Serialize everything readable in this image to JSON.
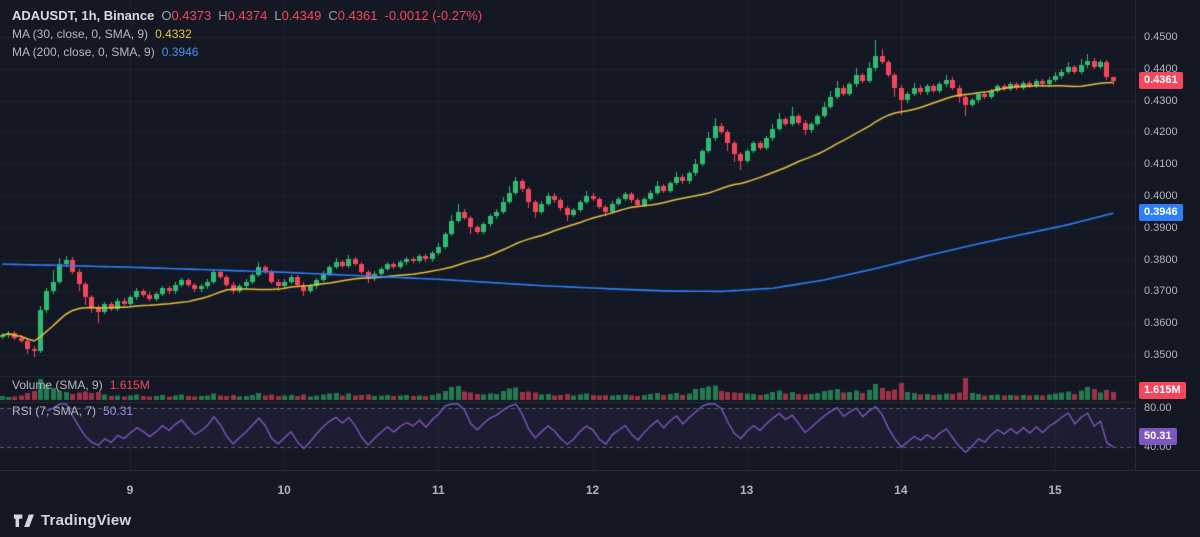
{
  "branding": {
    "logo_text": "TradingView"
  },
  "chart_data": {
    "type": "candlestick",
    "symbol_title": "ADAUSDT, 1h, Binance",
    "ohlc_legend": {
      "o_label": "O",
      "o": "0.4373",
      "h_label": "H",
      "h": "0.4374",
      "l_label": "L",
      "l": "0.4349",
      "c_label": "C",
      "c": "0.4361",
      "change": "-0.0012 (-0.27%)"
    },
    "indicators": [
      {
        "label": "MA (30, close, 0, SMA, 9)",
        "value": "0.4332",
        "color": "#e8c33d",
        "period": 30
      },
      {
        "label": "MA (200, close, 0, SMA, 9)",
        "value": "0.3946",
        "color": "#2d7ff9",
        "period": 200
      }
    ],
    "volume_legend": {
      "label": "Volume (SMA, 9)",
      "value": "1.615M"
    },
    "rsi_legend": {
      "label": "RSI (7, SMA, 7)",
      "value": "50.31",
      "period": 7
    },
    "price_axis_ticks": [
      "0.4500",
      "0.4400",
      "0.4300",
      "0.4200",
      "0.4100",
      "0.4000",
      "0.3900",
      "0.3800",
      "0.3700",
      "0.3600",
      "0.3500"
    ],
    "ylim": [
      0.3453,
      0.4616
    ],
    "rsi_axis_ticks": [
      {
        "label": "80.00",
        "value": 80
      },
      {
        "label": "40.00",
        "value": 40
      }
    ],
    "rsi_dashed_levels": [
      80,
      40
    ],
    "time_ticks": [
      {
        "label": "9",
        "i": 20
      },
      {
        "label": "10",
        "i": 44
      },
      {
        "label": "11",
        "i": 68
      },
      {
        "label": "12",
        "i": 92
      },
      {
        "label": "13",
        "i": 116
      },
      {
        "label": "14",
        "i": 140
      },
      {
        "label": "15",
        "i": 164
      }
    ],
    "badges": [
      {
        "name": "last-price-badge",
        "text": "0.4361",
        "bg": "#f6465d",
        "pane": "price",
        "value": 0.4361
      },
      {
        "name": "ma200-value-badge",
        "text": "0.3946",
        "bg": "#2d7ff9",
        "pane": "price",
        "value": 0.3946
      },
      {
        "name": "volume-value-badge",
        "text": "1.615M",
        "bg": "#f6465d",
        "pane": "volume",
        "value": 0
      },
      {
        "name": "rsi-value-badge",
        "text": "50.31",
        "bg": "#7e57c2",
        "pane": "rsi",
        "value": 50.31
      }
    ],
    "colors": {
      "background": "#141824",
      "up": "#2ebd70",
      "down": "#f6465d",
      "ma30": "#e8c33d",
      "ma200": "#2d7ff9",
      "rsi": "#7e57c2",
      "axis_text": "#b2b5be",
      "grid": "rgba(140,150,175,0.08)"
    },
    "ma200_waypoints": [
      [
        0,
        0.3786
      ],
      [
        20,
        0.3776
      ],
      [
        44,
        0.376
      ],
      [
        68,
        0.3738
      ],
      [
        84,
        0.3718
      ],
      [
        96,
        0.3707
      ],
      [
        104,
        0.3701
      ],
      [
        112,
        0.37
      ],
      [
        120,
        0.371
      ],
      [
        128,
        0.3736
      ],
      [
        136,
        0.3772
      ],
      [
        144,
        0.3812
      ],
      [
        152,
        0.385
      ],
      [
        160,
        0.3884
      ],
      [
        166,
        0.391
      ],
      [
        173,
        0.3946
      ]
    ],
    "candles": [
      [
        0.3558,
        0.3569,
        0.3551,
        0.3562
      ],
      [
        0.3562,
        0.3577,
        0.3555,
        0.357
      ],
      [
        0.357,
        0.3577,
        0.3548,
        0.3555
      ],
      [
        0.3555,
        0.3562,
        0.3538,
        0.3545
      ],
      [
        0.3545,
        0.3552,
        0.3502,
        0.352
      ],
      [
        0.352,
        0.3527,
        0.3495,
        0.3512
      ],
      [
        0.3512,
        0.3655,
        0.3505,
        0.364
      ],
      [
        0.364,
        0.3712,
        0.3633,
        0.37
      ],
      [
        0.37,
        0.3768,
        0.3693,
        0.373
      ],
      [
        0.373,
        0.3805,
        0.3723,
        0.3785
      ],
      [
        0.3785,
        0.3812,
        0.3778,
        0.38
      ],
      [
        0.38,
        0.3807,
        0.3755,
        0.3762
      ],
      [
        0.3762,
        0.3769,
        0.3701,
        0.3722
      ],
      [
        0.3722,
        0.3729,
        0.3656,
        0.3681
      ],
      [
        0.3681,
        0.3688,
        0.3631,
        0.3651
      ],
      [
        0.3651,
        0.3658,
        0.3601,
        0.3636
      ],
      [
        0.3636,
        0.3668,
        0.3629,
        0.3661
      ],
      [
        0.3661,
        0.3668,
        0.3638,
        0.3645
      ],
      [
        0.3645,
        0.3678,
        0.3638,
        0.3671
      ],
      [
        0.3671,
        0.3678,
        0.3653,
        0.366
      ],
      [
        0.366,
        0.3688,
        0.3653,
        0.3681
      ],
      [
        0.3681,
        0.3711,
        0.3674,
        0.3701
      ],
      [
        0.3701,
        0.3708,
        0.3683,
        0.369
      ],
      [
        0.369,
        0.3697,
        0.3669,
        0.3676
      ],
      [
        0.3676,
        0.3698,
        0.3669,
        0.3691
      ],
      [
        0.3691,
        0.3718,
        0.3684,
        0.3711
      ],
      [
        0.3711,
        0.3718,
        0.3693,
        0.37
      ],
      [
        0.37,
        0.3728,
        0.3693,
        0.3721
      ],
      [
        0.3721,
        0.3743,
        0.3714,
        0.3736
      ],
      [
        0.3736,
        0.3743,
        0.3713,
        0.372
      ],
      [
        0.372,
        0.3727,
        0.3699,
        0.3706
      ],
      [
        0.3706,
        0.3723,
        0.3699,
        0.3716
      ],
      [
        0.3716,
        0.3738,
        0.3709,
        0.3731
      ],
      [
        0.3731,
        0.3771,
        0.3724,
        0.3761
      ],
      [
        0.3761,
        0.3768,
        0.3739,
        0.3746
      ],
      [
        0.3746,
        0.3753,
        0.3714,
        0.3721
      ],
      [
        0.3721,
        0.3728,
        0.3691,
        0.3701
      ],
      [
        0.3701,
        0.3723,
        0.3694,
        0.3716
      ],
      [
        0.3716,
        0.3738,
        0.3709,
        0.3731
      ],
      [
        0.3731,
        0.3758,
        0.3724,
        0.3751
      ],
      [
        0.3751,
        0.3791,
        0.3744,
        0.3776
      ],
      [
        0.3776,
        0.3783,
        0.3754,
        0.3761
      ],
      [
        0.3761,
        0.3768,
        0.3724,
        0.3731
      ],
      [
        0.3731,
        0.3738,
        0.3701,
        0.3716
      ],
      [
        0.3716,
        0.3738,
        0.3709,
        0.3731
      ],
      [
        0.3731,
        0.3753,
        0.3724,
        0.3746
      ],
      [
        0.3746,
        0.3753,
        0.3714,
        0.3721
      ],
      [
        0.3721,
        0.3728,
        0.3686,
        0.3701
      ],
      [
        0.3701,
        0.3723,
        0.3694,
        0.3716
      ],
      [
        0.3716,
        0.3743,
        0.3709,
        0.3736
      ],
      [
        0.3736,
        0.3763,
        0.3729,
        0.3756
      ],
      [
        0.3756,
        0.3783,
        0.3749,
        0.3776
      ],
      [
        0.3776,
        0.3806,
        0.3769,
        0.3791
      ],
      [
        0.3791,
        0.3798,
        0.3774,
        0.3781
      ],
      [
        0.3781,
        0.3816,
        0.3774,
        0.3801
      ],
      [
        0.3801,
        0.3808,
        0.3779,
        0.3786
      ],
      [
        0.3786,
        0.3793,
        0.3754,
        0.3761
      ],
      [
        0.3761,
        0.3768,
        0.3726,
        0.3741
      ],
      [
        0.3741,
        0.3763,
        0.3734,
        0.3756
      ],
      [
        0.3756,
        0.3778,
        0.3749,
        0.3771
      ],
      [
        0.3771,
        0.3793,
        0.3764,
        0.3786
      ],
      [
        0.3786,
        0.3793,
        0.3769,
        0.3776
      ],
      [
        0.3776,
        0.3798,
        0.3769,
        0.3791
      ],
      [
        0.3791,
        0.3808,
        0.3784,
        0.3801
      ],
      [
        0.3801,
        0.3808,
        0.3789,
        0.3796
      ],
      [
        0.3796,
        0.3818,
        0.3789,
        0.3811
      ],
      [
        0.3811,
        0.3818,
        0.3794,
        0.3801
      ],
      [
        0.3801,
        0.3828,
        0.3794,
        0.3821
      ],
      [
        0.3821,
        0.3851,
        0.3814,
        0.3841
      ],
      [
        0.3841,
        0.3888,
        0.3834,
        0.3881
      ],
      [
        0.3881,
        0.3941,
        0.3874,
        0.3921
      ],
      [
        0.3921,
        0.3976,
        0.3914,
        0.3951
      ],
      [
        0.3951,
        0.3958,
        0.3924,
        0.3931
      ],
      [
        0.3931,
        0.3938,
        0.3881,
        0.3901
      ],
      [
        0.3901,
        0.3908,
        0.3879,
        0.3886
      ],
      [
        0.3886,
        0.3918,
        0.3879,
        0.3911
      ],
      [
        0.3911,
        0.3943,
        0.3904,
        0.3936
      ],
      [
        0.3936,
        0.3958,
        0.3929,
        0.3951
      ],
      [
        0.3951,
        0.3996,
        0.3944,
        0.3981
      ],
      [
        0.3981,
        0.4031,
        0.3974,
        0.4011
      ],
      [
        0.4011,
        0.4061,
        0.4004,
        0.4046
      ],
      [
        0.4046,
        0.4053,
        0.4014,
        0.4021
      ],
      [
        0.4021,
        0.4028,
        0.3961,
        0.3981
      ],
      [
        0.3981,
        0.3988,
        0.3931,
        0.3951
      ],
      [
        0.3951,
        0.3983,
        0.3944,
        0.3976
      ],
      [
        0.3976,
        0.4008,
        0.3969,
        0.4001
      ],
      [
        0.4001,
        0.4008,
        0.3979,
        0.3986
      ],
      [
        0.3986,
        0.3993,
        0.3954,
        0.3961
      ],
      [
        0.3961,
        0.3968,
        0.3921,
        0.3941
      ],
      [
        0.3941,
        0.3963,
        0.3934,
        0.3956
      ],
      [
        0.3956,
        0.3988,
        0.3949,
        0.3981
      ],
      [
        0.3981,
        0.4016,
        0.3974,
        0.4001
      ],
      [
        0.4001,
        0.4008,
        0.3984,
        0.3991
      ],
      [
        0.3991,
        0.3998,
        0.3959,
        0.3966
      ],
      [
        0.3966,
        0.3973,
        0.3936,
        0.3951
      ],
      [
        0.3951,
        0.3983,
        0.3944,
        0.3976
      ],
      [
        0.3976,
        0.3998,
        0.3969,
        0.3991
      ],
      [
        0.3991,
        0.4013,
        0.3984,
        0.4006
      ],
      [
        0.4006,
        0.4013,
        0.3979,
        0.3986
      ],
      [
        0.3986,
        0.3993,
        0.3964,
        0.3971
      ],
      [
        0.3971,
        0.3998,
        0.3964,
        0.3991
      ],
      [
        0.3991,
        0.4018,
        0.3984,
        0.4011
      ],
      [
        0.4011,
        0.4046,
        0.4004,
        0.4031
      ],
      [
        0.4031,
        0.4038,
        0.4009,
        0.4016
      ],
      [
        0.4016,
        0.4048,
        0.4009,
        0.4041
      ],
      [
        0.4041,
        0.4076,
        0.4034,
        0.4061
      ],
      [
        0.4061,
        0.4068,
        0.4039,
        0.4046
      ],
      [
        0.4046,
        0.4078,
        0.4039,
        0.4071
      ],
      [
        0.4071,
        0.4116,
        0.4064,
        0.4101
      ],
      [
        0.4101,
        0.4148,
        0.4094,
        0.4141
      ],
      [
        0.4141,
        0.4201,
        0.4134,
        0.4181
      ],
      [
        0.4181,
        0.4246,
        0.4174,
        0.4221
      ],
      [
        0.4221,
        0.4228,
        0.4194,
        0.4201
      ],
      [
        0.4201,
        0.4208,
        0.4141,
        0.4166
      ],
      [
        0.4166,
        0.4173,
        0.4106,
        0.4131
      ],
      [
        0.4131,
        0.4138,
        0.4081,
        0.4111
      ],
      [
        0.4111,
        0.4148,
        0.4104,
        0.4141
      ],
      [
        0.4141,
        0.4173,
        0.4134,
        0.4166
      ],
      [
        0.4166,
        0.4173,
        0.4144,
        0.4151
      ],
      [
        0.4151,
        0.4188,
        0.4144,
        0.4181
      ],
      [
        0.4181,
        0.4226,
        0.4174,
        0.4211
      ],
      [
        0.4211,
        0.4261,
        0.4204,
        0.4241
      ],
      [
        0.4241,
        0.4248,
        0.4219,
        0.4226
      ],
      [
        0.4226,
        0.4281,
        0.4219,
        0.4251
      ],
      [
        0.4251,
        0.4258,
        0.4224,
        0.4231
      ],
      [
        0.4231,
        0.4238,
        0.4191,
        0.4206
      ],
      [
        0.4206,
        0.4233,
        0.4199,
        0.4226
      ],
      [
        0.4226,
        0.4258,
        0.4219,
        0.4251
      ],
      [
        0.4251,
        0.4296,
        0.4244,
        0.4281
      ],
      [
        0.4281,
        0.4331,
        0.4274,
        0.4311
      ],
      [
        0.4311,
        0.4361,
        0.4304,
        0.4341
      ],
      [
        0.4341,
        0.4348,
        0.4314,
        0.4321
      ],
      [
        0.4321,
        0.4358,
        0.4314,
        0.4351
      ],
      [
        0.4351,
        0.4401,
        0.4344,
        0.4381
      ],
      [
        0.4381,
        0.4388,
        0.4354,
        0.4361
      ],
      [
        0.4361,
        0.4421,
        0.4354,
        0.4401
      ],
      [
        0.4401,
        0.4491,
        0.4394,
        0.4441
      ],
      [
        0.4441,
        0.4461,
        0.4414,
        0.4421
      ],
      [
        0.4421,
        0.4428,
        0.4374,
        0.4381
      ],
      [
        0.4381,
        0.4388,
        0.4311,
        0.4341
      ],
      [
        0.4341,
        0.4348,
        0.4256,
        0.4301
      ],
      [
        0.4301,
        0.4328,
        0.4294,
        0.4321
      ],
      [
        0.4321,
        0.4356,
        0.4314,
        0.4341
      ],
      [
        0.4341,
        0.4348,
        0.4319,
        0.4326
      ],
      [
        0.4326,
        0.4353,
        0.4319,
        0.4346
      ],
      [
        0.4346,
        0.4353,
        0.4324,
        0.4331
      ],
      [
        0.4331,
        0.4358,
        0.4324,
        0.4351
      ],
      [
        0.4351,
        0.4381,
        0.4344,
        0.4366
      ],
      [
        0.4366,
        0.4373,
        0.4334,
        0.4341
      ],
      [
        0.4341,
        0.4348,
        0.4291,
        0.4311
      ],
      [
        0.4311,
        0.4318,
        0.4251,
        0.4286
      ],
      [
        0.4286,
        0.4308,
        0.4279,
        0.4301
      ],
      [
        0.4301,
        0.4328,
        0.4294,
        0.4321
      ],
      [
        0.4321,
        0.4328,
        0.4304,
        0.4311
      ],
      [
        0.4311,
        0.4338,
        0.4304,
        0.4331
      ],
      [
        0.4331,
        0.4353,
        0.4324,
        0.4346
      ],
      [
        0.4346,
        0.4353,
        0.4329,
        0.4336
      ],
      [
        0.4336,
        0.4358,
        0.4329,
        0.4351
      ],
      [
        0.4351,
        0.4358,
        0.4334,
        0.4341
      ],
      [
        0.4341,
        0.4363,
        0.4334,
        0.4356
      ],
      [
        0.4356,
        0.4363,
        0.4339,
        0.4346
      ],
      [
        0.4346,
        0.4368,
        0.4339,
        0.4361
      ],
      [
        0.4361,
        0.4368,
        0.4344,
        0.4351
      ],
      [
        0.4351,
        0.4373,
        0.4344,
        0.4366
      ],
      [
        0.4366,
        0.4391,
        0.4359,
        0.4376
      ],
      [
        0.4376,
        0.4398,
        0.4369,
        0.4391
      ],
      [
        0.4391,
        0.4421,
        0.4384,
        0.4406
      ],
      [
        0.4406,
        0.4413,
        0.4384,
        0.4391
      ],
      [
        0.4391,
        0.4431,
        0.4384,
        0.4411
      ],
      [
        0.4411,
        0.4446,
        0.4404,
        0.4426
      ],
      [
        0.4426,
        0.4433,
        0.4399,
        0.4406
      ],
      [
        0.4406,
        0.4428,
        0.4399,
        0.4421
      ],
      [
        0.4421,
        0.4428,
        0.4365,
        0.4373
      ],
      [
        0.4373,
        0.4374,
        0.4349,
        0.4361
      ]
    ],
    "volumes": [
      0.8,
      0.6,
      0.7,
      0.9,
      1.4,
      1.8,
      4.2,
      3.1,
      2.4,
      1.9,
      1.6,
      1.2,
      1.5,
      1.7,
      1.4,
      1.6,
      1.1,
      0.8,
      0.9,
      0.7,
      0.9,
      1.1,
      0.8,
      0.7,
      0.8,
      1.0,
      0.7,
      0.9,
      1.1,
      0.8,
      0.7,
      0.8,
      0.9,
      1.3,
      0.9,
      0.8,
      1.0,
      0.7,
      0.8,
      1.0,
      1.4,
      0.9,
      1.1,
      0.8,
      0.9,
      1.0,
      0.8,
      1.1,
      0.7,
      0.9,
      1.1,
      1.3,
      1.4,
      0.9,
      1.3,
      0.9,
      1.0,
      1.1,
      0.8,
      0.9,
      1.0,
      0.8,
      0.9,
      1.0,
      0.8,
      0.9,
      0.8,
      1.0,
      1.3,
      1.8,
      2.6,
      2.8,
      1.7,
      1.5,
      1.2,
      1.1,
      1.3,
      1.2,
      1.8,
      2.3,
      2.5,
      1.6,
      1.7,
      1.5,
      1.1,
      1.2,
      0.9,
      1.0,
      1.2,
      0.9,
      1.1,
      1.3,
      1.0,
      0.9,
      1.0,
      0.9,
      1.0,
      1.1,
      0.9,
      0.8,
      1.0,
      1.2,
      1.4,
      1.0,
      1.2,
      1.4,
      1.0,
      1.3,
      2.2,
      2.4,
      2.7,
      2.9,
      1.8,
      1.6,
      1.5,
      1.4,
      1.3,
      1.2,
      1.0,
      1.2,
      1.6,
      1.9,
      1.3,
      1.6,
      1.2,
      1.1,
      1.2,
      1.4,
      1.8,
      2.0,
      2.2,
      1.5,
      1.6,
      1.9,
      1.4,
      2.0,
      3.2,
      2.4,
      1.8,
      2.1,
      3.4,
      1.6,
      1.4,
      1.1,
      1.2,
      1.0,
      1.1,
      1.3,
      1.2,
      1.5,
      4.4,
      1.4,
      1.2,
      0.9,
      1.0,
      1.1,
      0.9,
      1.0,
      0.9,
      1.0,
      0.9,
      1.0,
      0.9,
      1.1,
      1.3,
      1.5,
      1.7,
      1.2,
      1.9,
      2.6,
      2.2,
      1.5,
      2.0,
      1.615
    ]
  }
}
